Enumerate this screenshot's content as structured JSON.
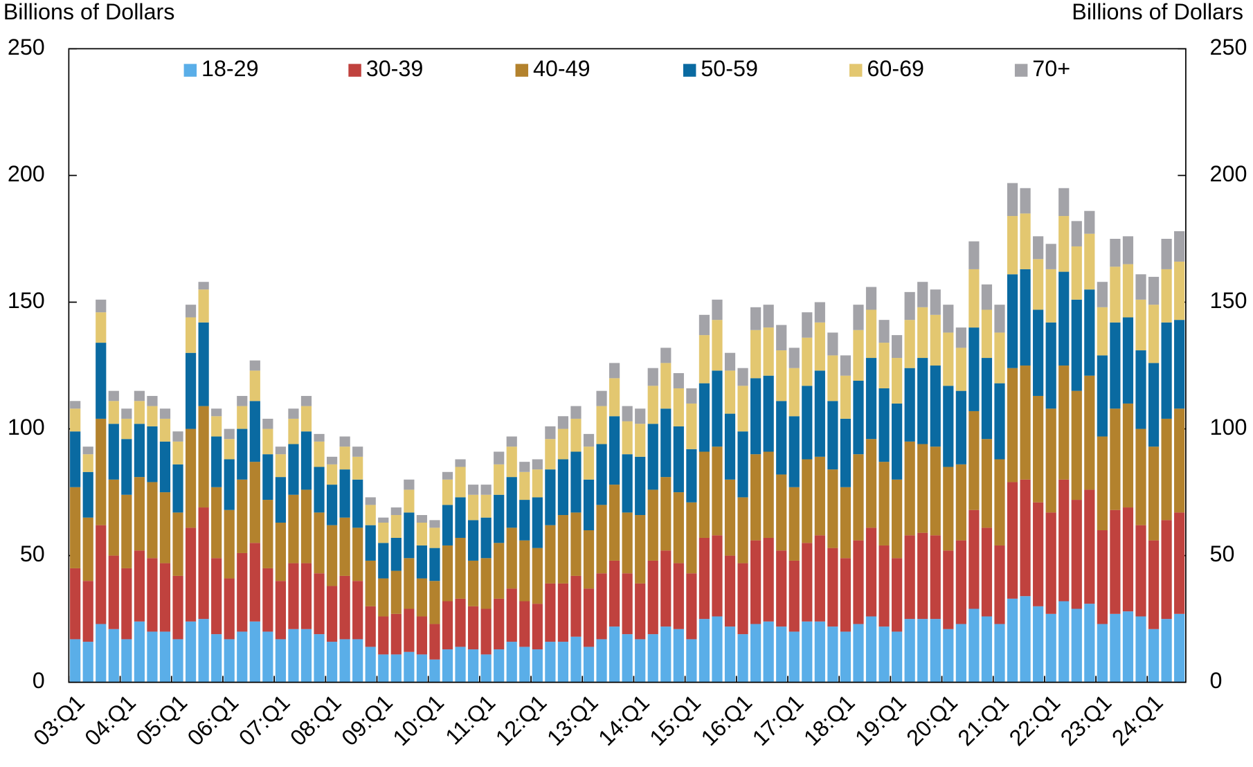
{
  "chart_data": {
    "type": "stacked_bar",
    "ylabel": "Billions of Dollars",
    "y2label": "Billions of Dollars",
    "ylim": [
      0,
      250
    ],
    "yticks": [
      0,
      50,
      100,
      150,
      200,
      250
    ],
    "y2lim": [
      0,
      250
    ],
    "y2ticks": [
      0,
      50,
      100,
      150,
      200,
      250
    ],
    "legend": "top",
    "categories": [
      "03:Q1",
      null,
      null,
      null,
      "04:Q1",
      null,
      null,
      null,
      "05:Q1",
      null,
      null,
      null,
      "06:Q1",
      null,
      null,
      null,
      "07:Q1",
      null,
      null,
      null,
      "08:Q1",
      null,
      null,
      null,
      "09:Q1",
      null,
      null,
      null,
      "10:Q1",
      null,
      null,
      null,
      "11:Q1",
      null,
      null,
      null,
      "12:Q1",
      null,
      null,
      null,
      "13:Q1",
      null,
      null,
      null,
      "14:Q1",
      null,
      null,
      null,
      "15:Q1",
      null,
      null,
      null,
      "16:Q1",
      null,
      null,
      null,
      "17:Q1",
      null,
      null,
      null,
      "18:Q1",
      null,
      null,
      null,
      "19:Q1",
      null,
      null,
      null,
      "20:Q1",
      null,
      null,
      null,
      "21:Q1",
      null,
      null,
      null,
      "22:Q1",
      null,
      null,
      null,
      "23:Q1",
      null,
      null,
      null,
      "24:Q1",
      null,
      null
    ],
    "series": [
      {
        "name": "18-29",
        "color": "#5aaee8",
        "values": [
          17,
          16,
          23,
          21,
          17,
          24,
          20,
          20,
          17,
          24,
          25,
          19,
          17,
          20,
          24,
          20,
          17,
          21,
          21,
          19,
          16,
          17,
          17,
          14,
          11,
          11,
          12,
          11,
          9,
          13,
          14,
          13,
          11,
          13,
          16,
          14,
          13,
          16,
          16,
          18,
          14,
          17,
          22,
          19,
          17,
          19,
          22,
          21,
          17,
          25,
          26,
          22,
          19,
          23,
          24,
          22,
          20,
          24,
          24,
          22,
          20,
          23,
          26,
          22,
          20,
          25,
          25,
          25,
          21,
          23,
          29,
          26,
          23,
          33,
          34,
          30,
          27,
          32,
          29,
          31,
          23,
          27,
          28,
          26,
          21,
          25,
          27
        ]
      },
      {
        "name": "30-39",
        "color": "#c0423e",
        "values": [
          28,
          24,
          39,
          29,
          28,
          28,
          29,
          27,
          25,
          37,
          44,
          30,
          24,
          31,
          31,
          25,
          23,
          26,
          26,
          24,
          22,
          25,
          23,
          16,
          15,
          16,
          17,
          15,
          14,
          19,
          19,
          17,
          18,
          20,
          21,
          18,
          18,
          23,
          23,
          24,
          23,
          26,
          26,
          24,
          22,
          29,
          30,
          26,
          26,
          32,
          32,
          28,
          28,
          33,
          33,
          30,
          28,
          31,
          34,
          31,
          29,
          33,
          35,
          32,
          29,
          33,
          34,
          33,
          31,
          33,
          39,
          35,
          31,
          46,
          46,
          41,
          40,
          48,
          43,
          45,
          37,
          41,
          41,
          36,
          35,
          39,
          40
        ]
      },
      {
        "name": "40-49",
        "color": "#b3822d",
        "values": [
          32,
          25,
          42,
          30,
          29,
          29,
          30,
          28,
          25,
          39,
          40,
          28,
          27,
          29,
          32,
          27,
          23,
          27,
          29,
          24,
          24,
          23,
          21,
          18,
          15,
          17,
          20,
          15,
          17,
          22,
          24,
          18,
          20,
          22,
          24,
          24,
          22,
          23,
          27,
          25,
          23,
          27,
          30,
          24,
          27,
          28,
          29,
          28,
          28,
          34,
          35,
          30,
          26,
          34,
          34,
          30,
          29,
          33,
          31,
          31,
          28,
          34,
          35,
          33,
          31,
          37,
          35,
          35,
          33,
          30,
          39,
          35,
          34,
          45,
          45,
          42,
          41,
          45,
          43,
          45,
          37,
          40,
          41,
          38,
          37,
          40,
          41
        ]
      },
      {
        "name": "50-59",
        "color": "#0a6aa1",
        "values": [
          22,
          18,
          30,
          22,
          22,
          21,
          22,
          20,
          19,
          30,
          33,
          20,
          20,
          20,
          24,
          18,
          18,
          20,
          23,
          18,
          16,
          19,
          19,
          14,
          14,
          13,
          18,
          13,
          13,
          16,
          16,
          16,
          16,
          19,
          20,
          16,
          20,
          22,
          22,
          24,
          20,
          24,
          27,
          23,
          23,
          26,
          27,
          26,
          21,
          27,
          30,
          26,
          26,
          30,
          30,
          29,
          28,
          29,
          34,
          27,
          27,
          29,
          32,
          29,
          30,
          29,
          34,
          32,
          32,
          29,
          33,
          32,
          30,
          37,
          38,
          34,
          34,
          37,
          36,
          34,
          32,
          34,
          34,
          31,
          33,
          38,
          35
        ]
      },
      {
        "name": "60-69",
        "color": "#e3c770",
        "values": [
          9,
          7,
          12,
          9,
          8,
          9,
          8,
          9,
          9,
          14,
          13,
          8,
          8,
          9,
          12,
          10,
          9,
          10,
          10,
          10,
          8,
          9,
          9,
          8,
          8,
          9,
          9,
          9,
          8,
          10,
          12,
          10,
          9,
          12,
          12,
          11,
          11,
          12,
          12,
          13,
          13,
          15,
          15,
          13,
          13,
          15,
          18,
          15,
          18,
          19,
          20,
          17,
          18,
          19,
          19,
          20,
          19,
          19,
          19,
          18,
          17,
          20,
          19,
          18,
          18,
          19,
          20,
          20,
          21,
          17,
          23,
          19,
          20,
          23,
          22,
          20,
          21,
          22,
          21,
          22,
          19,
          22,
          21,
          20,
          23,
          21,
          23
        ]
      },
      {
        "name": "70+",
        "color": "#a3a3a8",
        "values": [
          3,
          3,
          5,
          4,
          4,
          4,
          4,
          4,
          4,
          5,
          3,
          3,
          4,
          4,
          4,
          4,
          3,
          4,
          4,
          3,
          3,
          4,
          4,
          3,
          2,
          3,
          4,
          3,
          3,
          3,
          3,
          4,
          4,
          5,
          4,
          4,
          4,
          5,
          5,
          5,
          5,
          6,
          6,
          6,
          6,
          7,
          6,
          6,
          6,
          8,
          8,
          7,
          7,
          9,
          9,
          10,
          8,
          10,
          8,
          9,
          8,
          10,
          9,
          9,
          9,
          11,
          10,
          10,
          11,
          8,
          11,
          10,
          11,
          13,
          10,
          9,
          10,
          11,
          10,
          9,
          10,
          11,
          11,
          10,
          11,
          12,
          12
        ]
      }
    ]
  }
}
